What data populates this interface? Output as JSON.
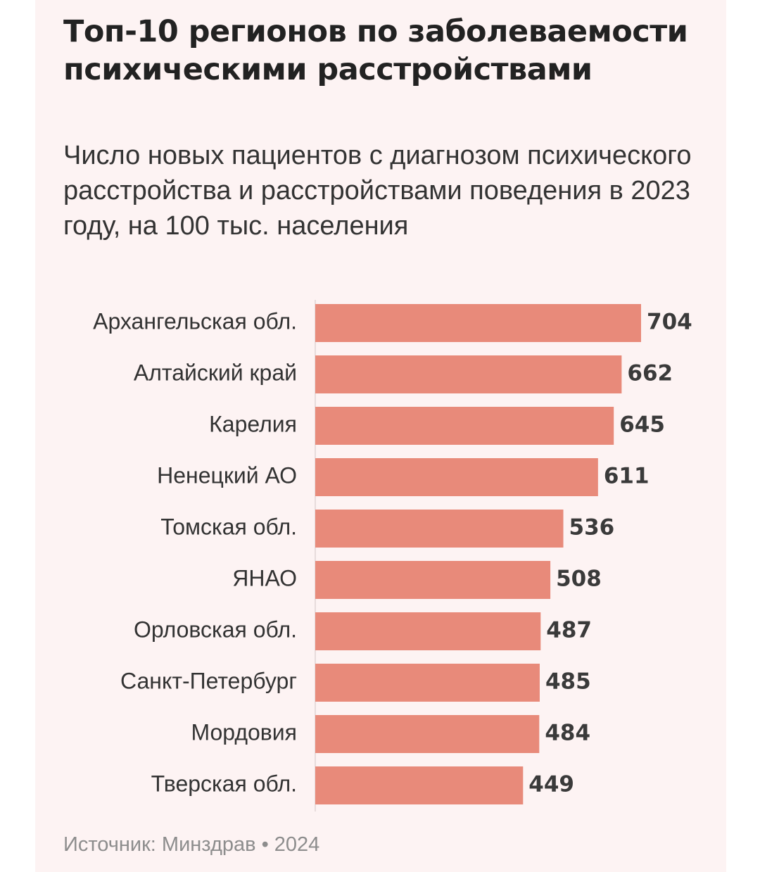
{
  "chart_data": {
    "type": "bar",
    "orientation": "horizontal",
    "title": "Топ-10 регионов по заболеваемости психическими расстройствами",
    "subtitle": "Число новых пациентов с диагнозом психического расстройства и расстройствами поведения в 2023 году, на 100 тыс. населения",
    "categories": [
      "Архангельская обл.",
      "Алтайский край",
      "Карелия",
      "Ненецкий АО",
      "Томская обл.",
      "ЯНАО",
      "Орловская обл.",
      "Санкт-Петербург",
      "Мордовия",
      "Тверская обл."
    ],
    "values": [
      704,
      662,
      645,
      611,
      536,
      508,
      487,
      485,
      484,
      449
    ],
    "value_labels": [
      "704",
      "662",
      "645",
      "611",
      "536",
      "508",
      "487",
      "485",
      "484",
      "449"
    ],
    "xlim": [
      0,
      704
    ],
    "xlabel": "",
    "ylabel": "",
    "grid": false,
    "bar_color": "#e88a7a",
    "background_color": "#fdf3f3"
  },
  "source": "Источник: Минздрав • 2024"
}
